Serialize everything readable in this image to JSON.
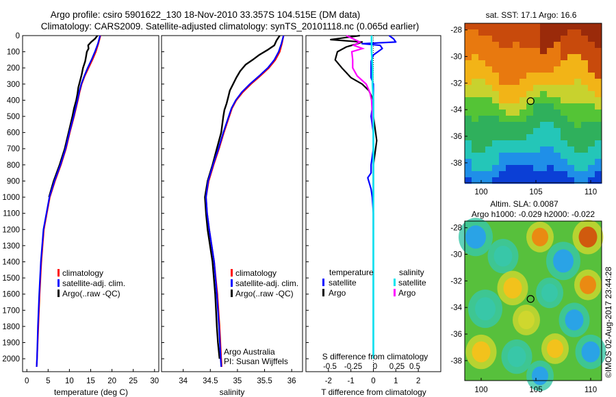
{
  "header": {
    "line1": "Argo profile: csiro 5901622_130 18-Nov-2010 33.357S 104.515E (DM data)",
    "line2": "Climatology: CARS2009. Satellite-adjusted climatology: synTS_20101118.nc (0.065d earlier)"
  },
  "footer": {
    "credit": "Argo Australia",
    "pi": "PI: Susan Wijffels",
    "stamp": "©IMOS 02-Aug-2017 23:44:28"
  },
  "colors": {
    "climatology": "#ff0000",
    "satellite": "#0000ff",
    "argo": "#000000",
    "salinity_satellite": "#00e5ee",
    "salinity_argo": "#ff00ff"
  },
  "chart_data": [
    {
      "id": "temperature",
      "type": "line",
      "xlabel": "temperature (deg C)",
      "xlim": [
        -1,
        31
      ],
      "xticks": [
        0,
        5,
        10,
        15,
        20,
        25,
        30
      ],
      "ylim": [
        2080,
        0
      ],
      "yticks": [
        0,
        100,
        200,
        300,
        400,
        500,
        600,
        700,
        800,
        900,
        1000,
        1100,
        1200,
        1300,
        1400,
        1500,
        1600,
        1700,
        1800,
        1900,
        2000
      ],
      "legend": [
        "climatology",
        "satellite-adj. clim.",
        "Argo(..raw -QC)"
      ],
      "series": [
        {
          "name": "climatology",
          "color": "#ff0000",
          "depth": [
            0,
            50,
            100,
            150,
            200,
            250,
            300,
            350,
            400,
            500,
            600,
            700,
            800,
            900,
            1000,
            1200,
            1400,
            1600,
            1800,
            2000,
            2050
          ],
          "values": [
            17.3,
            16.8,
            16.2,
            15.4,
            14.5,
            13.6,
            12.9,
            12.4,
            12.0,
            11.1,
            10.1,
            9.2,
            8.0,
            6.6,
            5.4,
            4.0,
            3.4,
            3.0,
            2.7,
            2.4,
            2.3
          ]
        },
        {
          "name": "satellite-adj. clim.",
          "color": "#0000ff",
          "depth": [
            0,
            50,
            100,
            150,
            200,
            250,
            300,
            350,
            400,
            500,
            600,
            700,
            800,
            900,
            1000,
            1200,
            1400,
            1600,
            1800,
            2000,
            2050
          ],
          "values": [
            17.2,
            16.7,
            16.0,
            15.2,
            14.3,
            13.5,
            12.8,
            12.3,
            11.9,
            11.0,
            10.0,
            9.1,
            7.9,
            6.5,
            5.3,
            3.9,
            3.3,
            2.9,
            2.6,
            2.4,
            2.3
          ]
        },
        {
          "name": "Argo(..raw -QC)",
          "color": "#000000",
          "depth": [
            0,
            20,
            40,
            60,
            80,
            100,
            130,
            160,
            200,
            240,
            280,
            320,
            360,
            400,
            450,
            500,
            600,
            700,
            800,
            900,
            1000
          ],
          "values": [
            16.6,
            16.0,
            15.1,
            14.4,
            14.5,
            14.1,
            13.9,
            13.7,
            13.2,
            12.9,
            12.5,
            12.1,
            11.9,
            11.6,
            11.1,
            10.7,
            9.8,
            8.9,
            7.7,
            6.3,
            5.2
          ]
        }
      ]
    },
    {
      "id": "salinity",
      "type": "line",
      "xlabel": "salinity",
      "xlim": [
        33.6,
        36.2
      ],
      "xticks": [
        34,
        34.5,
        35,
        35.5,
        36
      ],
      "xticklabels": [
        "34",
        "34.5",
        "35",
        "35.5",
        "36"
      ],
      "ylim": [
        2080,
        0
      ],
      "legend": [
        "climatology",
        "satellite-adj. clim.",
        "Argo(..raw -QC)"
      ],
      "series": [
        {
          "name": "climatology",
          "color": "#ff0000",
          "depth": [
            0,
            50,
            100,
            150,
            200,
            250,
            300,
            350,
            400,
            450,
            500,
            600,
            700,
            800,
            900,
            1000,
            1100,
            1200,
            1400,
            1600,
            1800,
            2000,
            2050
          ],
          "values": [
            35.85,
            35.82,
            35.78,
            35.7,
            35.58,
            35.42,
            35.25,
            35.1,
            34.98,
            34.9,
            34.85,
            34.75,
            34.66,
            34.56,
            34.47,
            34.42,
            34.44,
            34.48,
            34.57,
            34.63,
            34.67,
            34.7,
            34.71
          ]
        },
        {
          "name": "satellite-adj. clim.",
          "color": "#0000ff",
          "depth": [
            0,
            50,
            100,
            150,
            200,
            250,
            300,
            350,
            400,
            450,
            500,
            600,
            700,
            800,
            900,
            1000,
            1100,
            1200,
            1400,
            1600,
            1800,
            2000,
            2050
          ],
          "values": [
            35.85,
            35.81,
            35.76,
            35.68,
            35.56,
            35.4,
            35.23,
            35.08,
            34.97,
            34.89,
            34.84,
            34.74,
            34.65,
            34.55,
            34.46,
            34.42,
            34.44,
            34.48,
            34.57,
            34.62,
            34.66,
            34.69,
            34.7
          ]
        },
        {
          "name": "Argo(..raw -QC)",
          "color": "#000000",
          "depth": [
            0,
            30,
            60,
            90,
            120,
            150,
            180,
            220,
            260,
            300,
            340,
            380,
            420,
            460,
            500,
            600,
            700,
            800,
            900,
            1000,
            1100,
            1200,
            1400,
            1600,
            1800,
            1900,
            2000
          ],
          "values": [
            35.78,
            35.72,
            35.68,
            35.55,
            35.4,
            35.28,
            35.15,
            35.05,
            34.98,
            34.92,
            34.86,
            34.83,
            34.8,
            34.76,
            34.74,
            34.7,
            34.62,
            34.54,
            34.45,
            34.4,
            34.42,
            34.45,
            34.54,
            34.59,
            34.62,
            34.64,
            34.67
          ]
        }
      ]
    },
    {
      "id": "difference",
      "type": "line",
      "xlabel": "T difference from climatology",
      "top_axis_label": "S difference from climatology",
      "xlim": [
        -3,
        3
      ],
      "xticks": [
        -2,
        -1,
        0,
        1,
        2
      ],
      "top_ticks": [
        -0.5,
        -0.25,
        0,
        0.25,
        0.5
      ],
      "top_ticklabels": [
        "-0.5",
        "-0.25",
        "0",
        "0.25",
        "0.5"
      ],
      "ylim": [
        2080,
        0
      ],
      "legend": {
        "temperature_title": "temperature",
        "salinity_title": "salinity",
        "t_satellite": "satellite",
        "t_argo": "Argo",
        "s_satellite": "satellite",
        "s_argo": "Argo"
      },
      "series": [
        {
          "name": "temperature satellite",
          "color": "#0000ff",
          "depth": [
            0,
            20,
            40,
            50,
            60,
            80,
            100,
            120,
            160,
            200,
            260,
            300,
            400,
            500,
            600,
            700,
            800,
            850,
            880,
            950,
            1000,
            1100,
            1200,
            1400,
            1600,
            1800,
            2000
          ],
          "values": [
            0.7,
            0.9,
            1.0,
            -0.5,
            0.3,
            0.4,
            0.2,
            0.0,
            -0.1,
            -0.1,
            -0.1,
            0.0,
            0.0,
            -0.1,
            0.0,
            0.0,
            -0.1,
            -0.1,
            -0.25,
            -0.1,
            -0.05,
            0.0,
            0.0,
            0.0,
            0.0,
            0.0,
            0.0
          ]
        },
        {
          "name": "temperature Argo",
          "color": "#000000",
          "depth": [
            0,
            25,
            40,
            50,
            70,
            100,
            150,
            200,
            260,
            300,
            340,
            400,
            500,
            600,
            650,
            700,
            800,
            900,
            1000
          ],
          "values": [
            -0.6,
            -1.9,
            -0.5,
            -0.7,
            -1.2,
            -1.6,
            -1.7,
            -1.4,
            -1.0,
            -0.5,
            -0.2,
            0.0,
            0.0,
            0.1,
            0.15,
            0.1,
            0.0,
            0.0,
            0.0
          ]
        },
        {
          "name": "salinity satellite",
          "color": "#00e5ee",
          "depth": [
            0,
            100,
            200,
            300,
            400,
            500,
            600,
            700,
            800,
            900,
            1000,
            1200,
            1400,
            1600,
            1800,
            2000
          ],
          "values": [
            -0.02,
            -0.02,
            -0.01,
            -0.01,
            0.0,
            0.0,
            0.0,
            0.0,
            0.0,
            0.0,
            0.0,
            0.0,
            0.0,
            0.0,
            0.0,
            0.0
          ]
        },
        {
          "name": "salinity Argo",
          "color": "#ff00ff",
          "depth": [
            0,
            40,
            60,
            80,
            100,
            150,
            200,
            250,
            300,
            350,
            400,
            500,
            600,
            700,
            800,
            900,
            1000,
            1100,
            1200
          ],
          "values": [
            -0.3,
            -0.15,
            -0.22,
            -0.12,
            -0.24,
            -0.23,
            -0.23,
            -0.18,
            -0.08,
            -0.04,
            -0.02,
            -0.01,
            0.0,
            0.0,
            0.0,
            0.0,
            0.0,
            0.0,
            0.0
          ]
        }
      ]
    },
    {
      "id": "sst_map",
      "type": "heatmap",
      "title": "sat. SST: 17.1  Argo: 16.6",
      "xlim": [
        98.5,
        111
      ],
      "ylim": [
        -39.5,
        -27.5
      ],
      "xticks": [
        100,
        105,
        110
      ],
      "yticks": [
        -28,
        -30,
        -32,
        -34,
        -36,
        -38
      ],
      "marker": {
        "lon": 104.515,
        "lat": -33.357
      },
      "palette": [
        "#0b3fd6",
        "#1f8fe8",
        "#24c6b8",
        "#2fb05c",
        "#54c436",
        "#c8d22e",
        "#f2b417",
        "#e8790f",
        "#c84a0c",
        "#9a2a0a"
      ]
    },
    {
      "id": "ssh_map",
      "type": "heatmap",
      "title_line1": "Altim. SLA: 0.0087",
      "title_line2": "Argo h1000: -0.029 h2000: -0.022",
      "xlim": [
        98.5,
        111
      ],
      "ylim": [
        -39.5,
        -27.5
      ],
      "xticks": [
        100,
        105,
        110
      ],
      "yticks": [
        -28,
        -30,
        -32,
        -34,
        -36,
        -38
      ],
      "marker": {
        "lon": 104.515,
        "lat": -33.357
      },
      "palette": [
        "#1d6be0",
        "#2aa3e6",
        "#38c7a8",
        "#3fbf5a",
        "#6fcc3a",
        "#cfd72e",
        "#f2c21c",
        "#ea8a12",
        "#d05a0e"
      ]
    }
  ]
}
